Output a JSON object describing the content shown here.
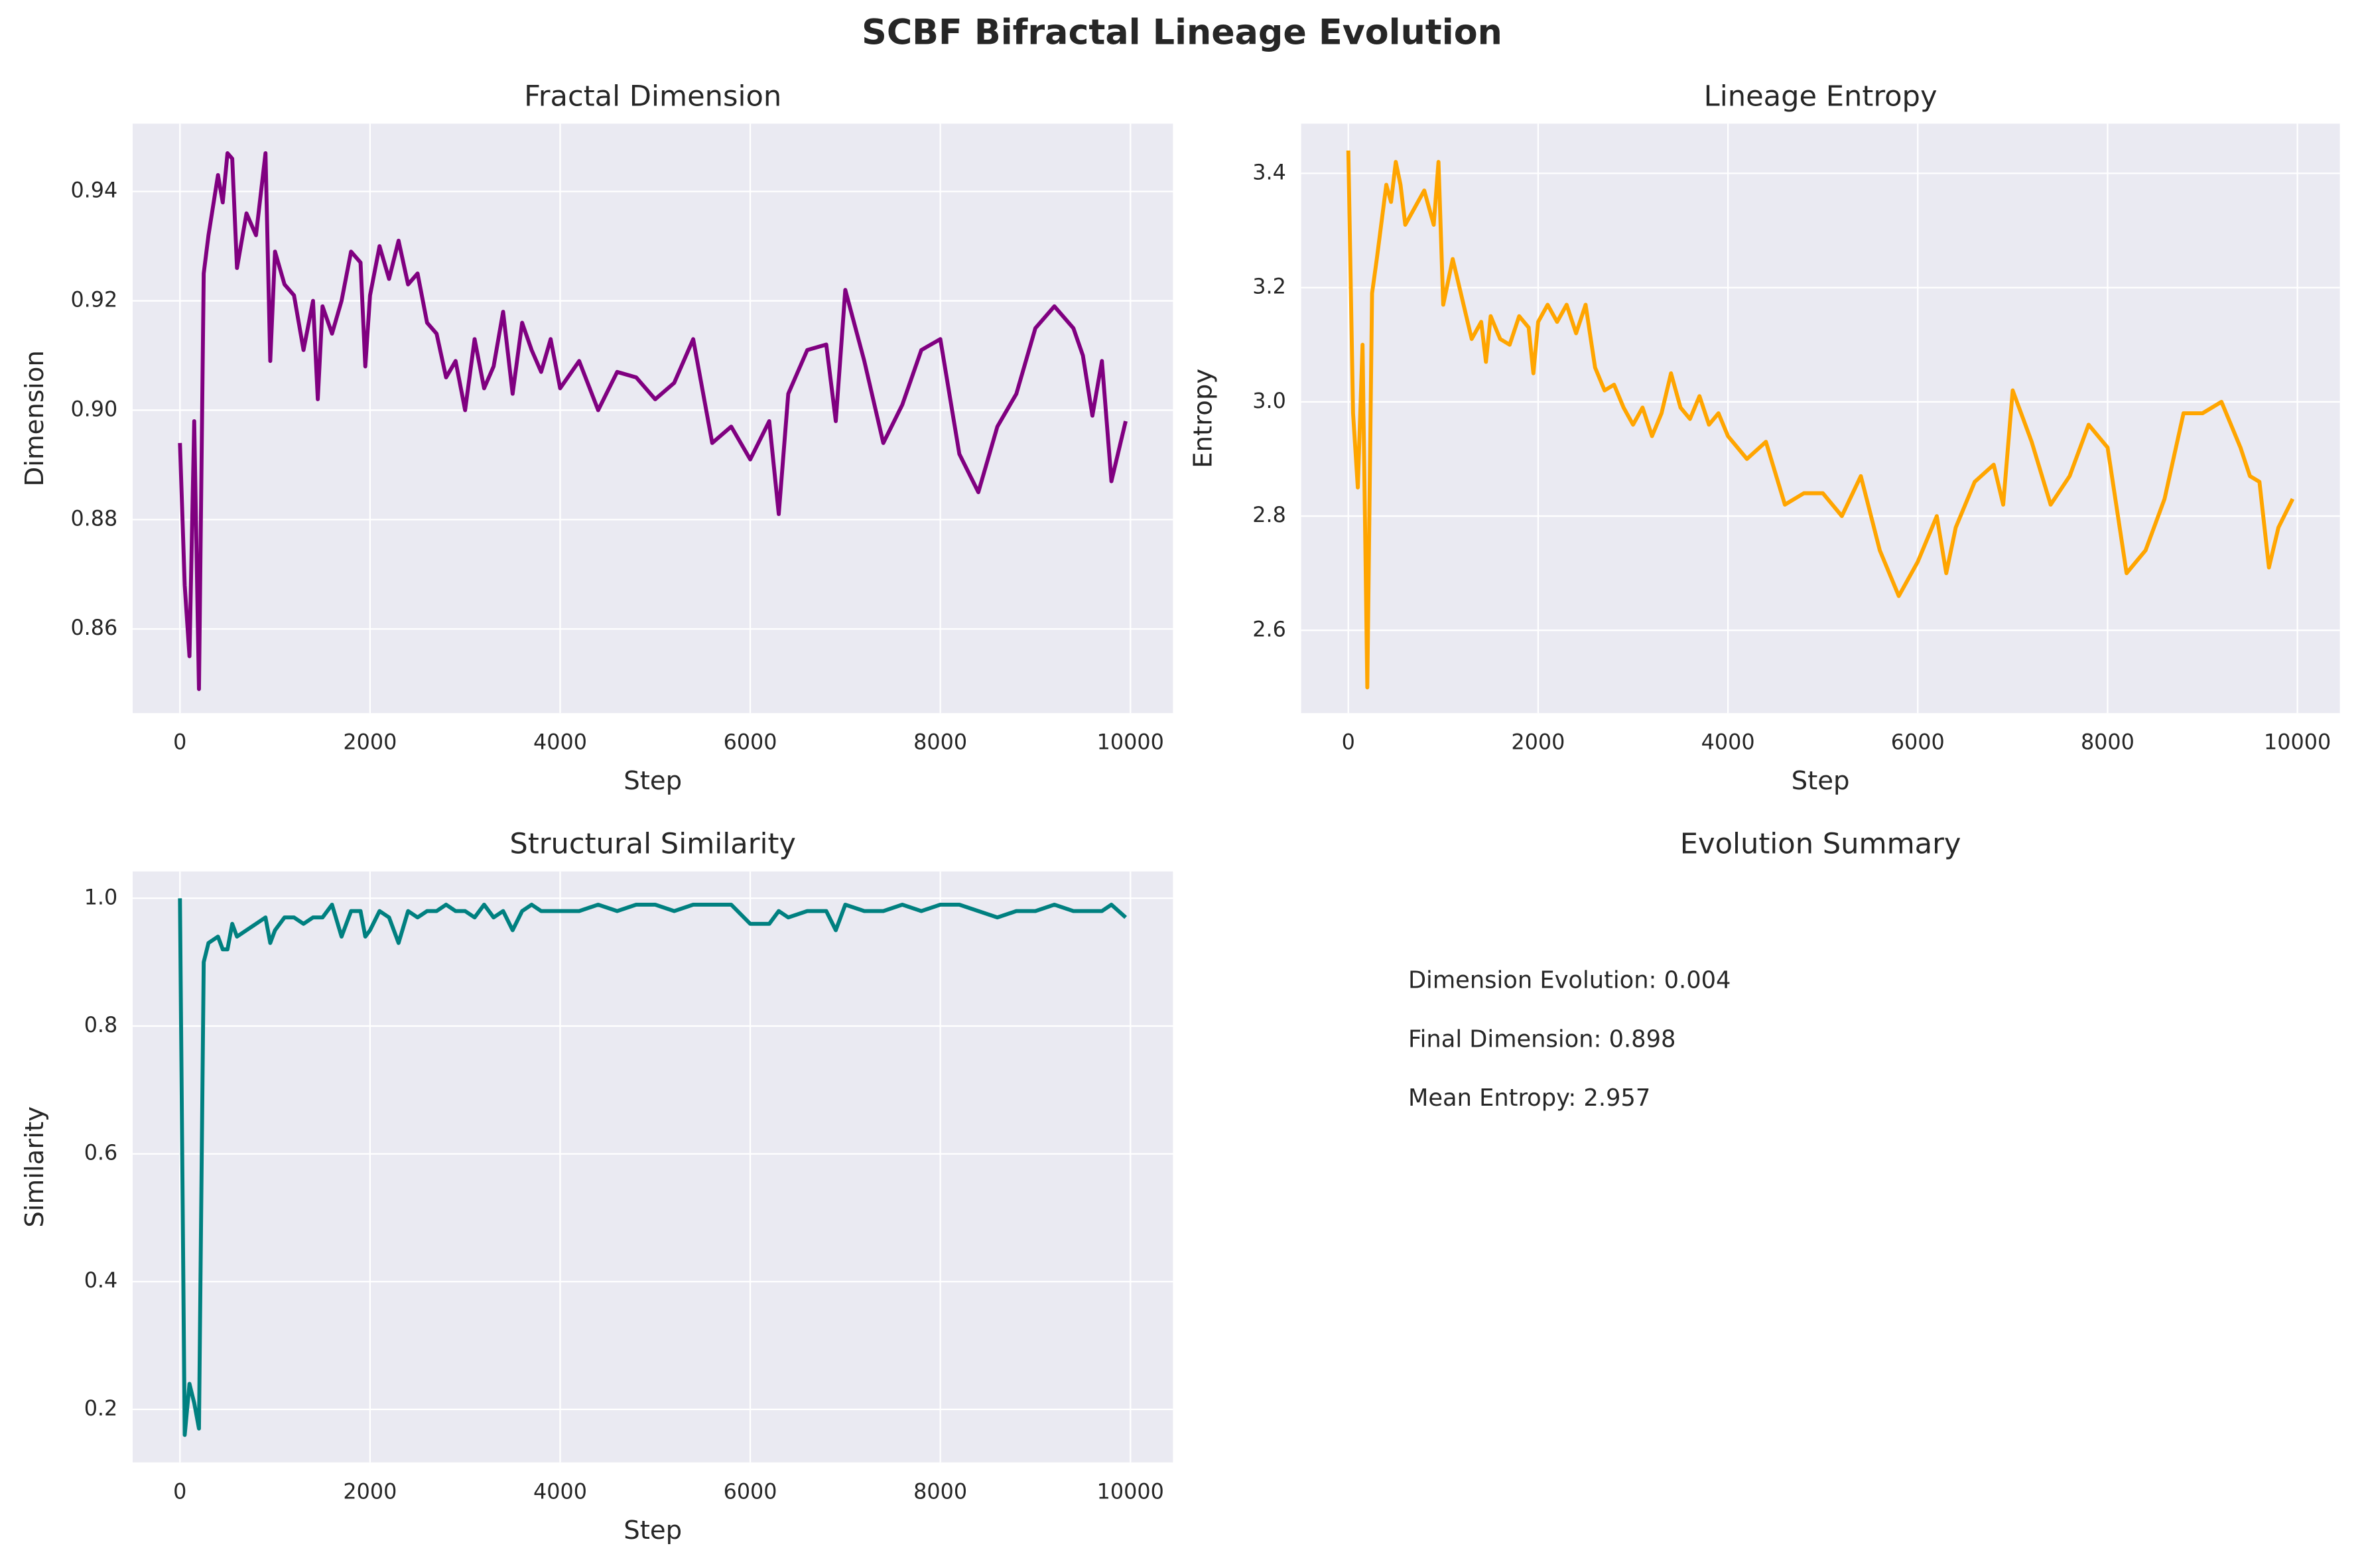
{
  "title": "SCBF Bifractal Lineage Evolution",
  "chart_data": [
    {
      "type": "line",
      "title": "Fractal Dimension",
      "xlabel": "Step",
      "ylabel": "Dimension",
      "color": "#800080",
      "grid": true,
      "x": [
        0,
        50,
        100,
        150,
        200,
        250,
        300,
        400,
        450,
        500,
        550,
        600,
        700,
        800,
        900,
        950,
        1000,
        1100,
        1200,
        1300,
        1400,
        1450,
        1500,
        1600,
        1700,
        1800,
        1900,
        1950,
        2000,
        2100,
        2200,
        2300,
        2400,
        2500,
        2600,
        2700,
        2800,
        2900,
        3000,
        3100,
        3200,
        3300,
        3400,
        3500,
        3600,
        3700,
        3800,
        3900,
        4000,
        4200,
        4400,
        4600,
        4800,
        5000,
        5200,
        5400,
        5600,
        5800,
        6000,
        6200,
        6300,
        6400,
        6600,
        6800,
        6900,
        7000,
        7200,
        7400,
        7600,
        7800,
        8000,
        8200,
        8400,
        8600,
        8800,
        9000,
        9200,
        9400,
        9500,
        9600,
        9700,
        9800,
        9950
      ],
      "values": [
        0.894,
        0.868,
        0.855,
        0.898,
        0.849,
        0.925,
        0.932,
        0.943,
        0.938,
        0.947,
        0.946,
        0.926,
        0.936,
        0.932,
        0.947,
        0.909,
        0.929,
        0.923,
        0.921,
        0.911,
        0.92,
        0.902,
        0.919,
        0.914,
        0.92,
        0.929,
        0.927,
        0.908,
        0.921,
        0.93,
        0.924,
        0.931,
        0.923,
        0.925,
        0.916,
        0.914,
        0.906,
        0.909,
        0.9,
        0.913,
        0.904,
        0.908,
        0.918,
        0.903,
        0.916,
        0.911,
        0.907,
        0.913,
        0.904,
        0.909,
        0.9,
        0.907,
        0.906,
        0.902,
        0.905,
        0.913,
        0.894,
        0.897,
        0.891,
        0.898,
        0.881,
        0.903,
        0.911,
        0.912,
        0.898,
        0.922,
        0.909,
        0.894,
        0.901,
        0.911,
        0.913,
        0.892,
        0.885,
        0.897,
        0.903,
        0.915,
        0.919,
        0.915,
        0.91,
        0.899,
        0.909,
        0.887,
        0.898
      ],
      "xlim": [
        -497.5,
        10447.5
      ],
      "xticks": [
        0,
        2000,
        4000,
        6000,
        8000,
        10000
      ],
      "ylim": [
        0.8446,
        0.9524
      ],
      "yticks": [
        0.86,
        0.88,
        {
          "value": 0.9,
          "label": "0.90"
        },
        0.92,
        0.94
      ]
    },
    {
      "type": "line",
      "title": "Lineage Entropy",
      "xlabel": "Step",
      "ylabel": "Entropy",
      "color": "#ffa500",
      "grid": true,
      "x": [
        0,
        50,
        100,
        150,
        200,
        250,
        300,
        400,
        450,
        500,
        550,
        600,
        700,
        800,
        900,
        950,
        1000,
        1100,
        1200,
        1300,
        1400,
        1450,
        1500,
        1600,
        1700,
        1800,
        1900,
        1950,
        2000,
        2100,
        2200,
        2300,
        2400,
        2500,
        2600,
        2700,
        2800,
        2900,
        3000,
        3100,
        3200,
        3300,
        3400,
        3500,
        3600,
        3700,
        3800,
        3900,
        4000,
        4200,
        4400,
        4600,
        4800,
        5000,
        5200,
        5400,
        5600,
        5800,
        6000,
        6200,
        6300,
        6400,
        6600,
        6800,
        6900,
        7000,
        7200,
        7400,
        7600,
        7800,
        8000,
        8200,
        8400,
        8600,
        8800,
        9000,
        9200,
        9400,
        9500,
        9600,
        9700,
        9800,
        9950
      ],
      "values": [
        3.44,
        2.98,
        2.85,
        3.1,
        2.5,
        3.19,
        3.25,
        3.38,
        3.35,
        3.42,
        3.38,
        3.31,
        3.34,
        3.37,
        3.31,
        3.42,
        3.17,
        3.25,
        3.18,
        3.11,
        3.14,
        3.07,
        3.15,
        3.11,
        3.1,
        3.15,
        3.13,
        3.05,
        3.14,
        3.17,
        3.14,
        3.17,
        3.12,
        3.17,
        3.06,
        3.02,
        3.03,
        2.99,
        2.96,
        2.99,
        2.94,
        2.98,
        3.05,
        2.99,
        2.97,
        3.01,
        2.96,
        2.98,
        2.94,
        2.9,
        2.93,
        2.82,
        2.84,
        2.84,
        2.8,
        2.87,
        2.74,
        2.66,
        2.72,
        2.8,
        2.7,
        2.78,
        2.86,
        2.89,
        2.82,
        3.02,
        2.93,
        2.82,
        2.87,
        2.96,
        2.92,
        2.7,
        2.74,
        2.83,
        2.98,
        2.98,
        3.0,
        2.92,
        2.87,
        2.86,
        2.71,
        2.78,
        2.83
      ],
      "xlim": [
        -497.5,
        10447.5
      ],
      "xticks": [
        0,
        2000,
        4000,
        6000,
        8000,
        10000
      ],
      "ylim": [
        2.455,
        3.487
      ],
      "yticks": [
        2.6,
        2.8,
        {
          "value": 3.0,
          "label": "3.0"
        },
        3.2,
        3.4
      ]
    },
    {
      "type": "line",
      "title": "Structural Similarity",
      "xlabel": "Step",
      "ylabel": "Similarity",
      "color": "#008080",
      "grid": true,
      "x": [
        0,
        50,
        100,
        150,
        200,
        250,
        300,
        400,
        450,
        500,
        550,
        600,
        700,
        800,
        900,
        950,
        1000,
        1100,
        1200,
        1300,
        1400,
        1450,
        1500,
        1600,
        1700,
        1800,
        1900,
        1950,
        2000,
        2100,
        2200,
        2300,
        2400,
        2500,
        2600,
        2700,
        2800,
        2900,
        3000,
        3100,
        3200,
        3300,
        3400,
        3500,
        3600,
        3700,
        3800,
        3900,
        4000,
        4200,
        4400,
        4600,
        4800,
        5000,
        5200,
        5400,
        5600,
        5800,
        6000,
        6200,
        6300,
        6400,
        6600,
        6800,
        6900,
        7000,
        7200,
        7400,
        7600,
        7800,
        8000,
        8200,
        8400,
        8600,
        8800,
        9000,
        9200,
        9400,
        9500,
        9600,
        9700,
        9800,
        9950
      ],
      "values": [
        1.0,
        0.16,
        0.24,
        0.21,
        0.17,
        0.9,
        0.93,
        0.94,
        0.92,
        0.92,
        0.96,
        0.94,
        0.95,
        0.96,
        0.97,
        0.93,
        0.95,
        0.97,
        0.97,
        0.96,
        0.97,
        0.97,
        0.97,
        0.99,
        0.94,
        0.98,
        0.98,
        0.94,
        0.95,
        0.98,
        0.97,
        0.93,
        0.98,
        0.97,
        0.98,
        0.98,
        0.99,
        0.98,
        0.98,
        0.97,
        0.99,
        0.97,
        0.98,
        0.95,
        0.98,
        0.99,
        0.98,
        0.98,
        0.98,
        0.98,
        0.99,
        0.98,
        0.99,
        0.99,
        0.98,
        0.99,
        0.99,
        0.99,
        0.96,
        0.96,
        0.98,
        0.97,
        0.98,
        0.98,
        0.95,
        0.99,
        0.98,
        0.98,
        0.99,
        0.98,
        0.99,
        0.99,
        0.98,
        0.97,
        0.98,
        0.98,
        0.99,
        0.98,
        0.98,
        0.98,
        0.98,
        0.99,
        0.97
      ],
      "xlim": [
        -497.5,
        10447.5
      ],
      "xticks": [
        0,
        2000,
        4000,
        6000,
        8000,
        10000
      ],
      "ylim": [
        0.117,
        1.042
      ],
      "yticks": [
        0.2,
        0.4,
        0.6,
        0.8,
        {
          "value": 1.0,
          "label": "1.0"
        }
      ]
    },
    {
      "type": "text",
      "title": "Evolution Summary",
      "lines": [
        "Dimension Evolution: 0.004",
        "Final Dimension: 0.898",
        "Mean Entropy: 2.957"
      ]
    }
  ]
}
